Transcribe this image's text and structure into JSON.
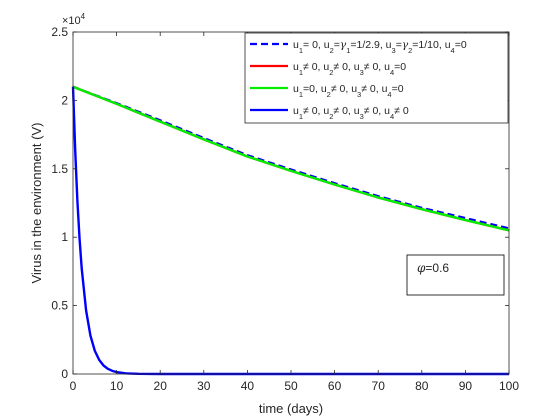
{
  "chart_data": {
    "type": "line",
    "xlabel": "time (days)",
    "ylabel": "Virus in the environment (V)",
    "y_exponent_label": "×10",
    "y_exponent_power": "4",
    "xlim": [
      0,
      100
    ],
    "ylim": [
      0,
      25000
    ],
    "xticks": [
      0,
      10,
      20,
      30,
      40,
      50,
      60,
      70,
      80,
      90,
      100
    ],
    "yticks": [
      0,
      5000,
      10000,
      15000,
      20000,
      25000
    ],
    "xtick_labels": [
      "0",
      "10",
      "20",
      "30",
      "40",
      "50",
      "60",
      "70",
      "80",
      "90",
      "100"
    ],
    "ytick_labels": [
      "0",
      "0.5",
      "1",
      "1.5",
      "2",
      "2.5"
    ],
    "grid": false,
    "legend_position": "top-right",
    "annotation": {
      "symbol": "φ",
      "text": "=0.6"
    },
    "series": [
      {
        "name": "u1= 0, u2=γ1=1/2.9, u3=γ2=1/10, u4=0",
        "legend_parts": [
          [
            "u",
            ""
          ],
          [
            "1",
            "sub"
          ],
          [
            "= 0, u",
            ""
          ],
          [
            "2",
            "sub"
          ],
          [
            "=",
            ""
          ],
          [
            "γ",
            "sym"
          ],
          [
            "1",
            "sub"
          ],
          [
            "=1/2.9, u",
            ""
          ],
          [
            "3",
            "sub"
          ],
          [
            "=",
            ""
          ],
          [
            "γ",
            "sym"
          ],
          [
            "2",
            "sub"
          ],
          [
            "=1/10, u",
            ""
          ],
          [
            "4",
            "sub"
          ],
          [
            "=0",
            ""
          ]
        ],
        "color": "#0000ff",
        "dash": true,
        "x": [
          0,
          10,
          20,
          30,
          40,
          50,
          60,
          70,
          80,
          90,
          100
        ],
        "y": [
          21000,
          19800,
          18550,
          17250,
          16000,
          14950,
          13950,
          13000,
          12150,
          11400,
          10650
        ]
      },
      {
        "name": "u1≠ 0, u2≠ 0, u3≠ 0, u4=0",
        "legend_parts": [
          [
            "u",
            ""
          ],
          [
            "1",
            "sub"
          ],
          [
            "≠ 0, u",
            ""
          ],
          [
            "2",
            "sub"
          ],
          [
            "≠ 0, u",
            ""
          ],
          [
            "3",
            "sub"
          ],
          [
            "≠ 0, u",
            ""
          ],
          [
            "4",
            "sub"
          ],
          [
            "=0",
            ""
          ]
        ],
        "color": "#ff0000",
        "dash": false,
        "x": [
          0,
          10,
          20,
          30,
          40,
          50,
          60,
          70,
          80,
          90,
          100
        ],
        "y": [
          21000,
          19750,
          18450,
          17150,
          15900,
          14850,
          13850,
          12900,
          12050,
          11250,
          10500
        ]
      },
      {
        "name": "u1=0, u2≠ 0, u3≠ 0, u4=0",
        "legend_parts": [
          [
            "u",
            ""
          ],
          [
            "1",
            "sub"
          ],
          [
            "=0, u",
            ""
          ],
          [
            "2",
            "sub"
          ],
          [
            "≠ 0, u",
            ""
          ],
          [
            "3",
            "sub"
          ],
          [
            "≠ 0, u",
            ""
          ],
          [
            "4",
            "sub"
          ],
          [
            "=0",
            ""
          ]
        ],
        "color": "#00ee00",
        "dash": false,
        "x": [
          0,
          10,
          20,
          30,
          40,
          50,
          60,
          70,
          80,
          90,
          100
        ],
        "y": [
          21000,
          19750,
          18450,
          17150,
          15900,
          14850,
          13850,
          12900,
          12050,
          11250,
          10500
        ]
      },
      {
        "name": "u1≠ 0, u2≠ 0, u3≠ 0, u4≠ 0",
        "legend_parts": [
          [
            "u",
            ""
          ],
          [
            "1",
            "sub"
          ],
          [
            "≠ 0, u",
            ""
          ],
          [
            "2",
            "sub"
          ],
          [
            "≠ 0, u",
            ""
          ],
          [
            "3",
            "sub"
          ],
          [
            "≠ 0, u",
            ""
          ],
          [
            "4",
            "sub"
          ],
          [
            "≠ 0",
            ""
          ]
        ],
        "color": "#0000ff",
        "dash": false,
        "x": [
          0,
          0.5,
          1,
          1.5,
          2,
          3,
          4,
          5,
          6,
          7,
          8,
          9,
          10,
          12,
          15,
          20,
          30,
          50,
          100
        ],
        "y": [
          21000,
          16400,
          12700,
          9900,
          7700,
          4650,
          2800,
          1700,
          1030,
          620,
          380,
          230,
          140,
          50,
          10,
          0,
          0,
          0,
          0
        ]
      }
    ]
  }
}
